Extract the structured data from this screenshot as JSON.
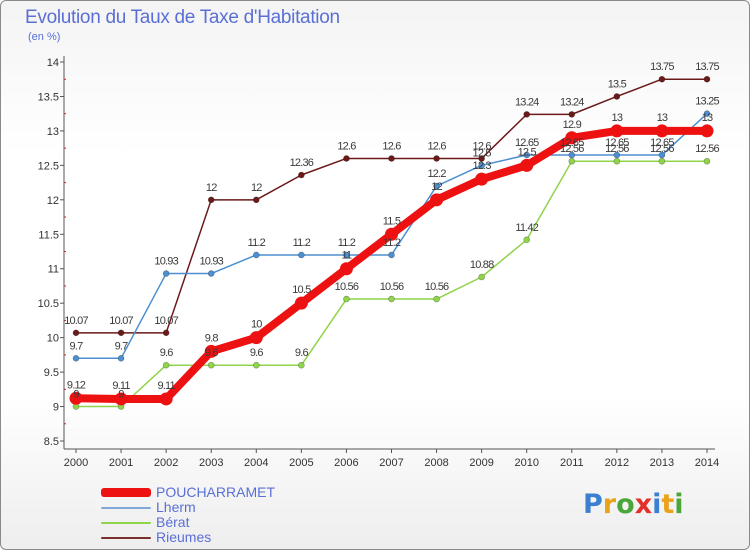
{
  "header": {
    "title": "Evolution du Taux de Taxe d'Habitation",
    "unit": "(en %)"
  },
  "chart_data": {
    "type": "line",
    "title": "Evolution du Taux de Taxe d'Habitation",
    "ylabel": "(en %)",
    "xlabel": "",
    "x": [
      2000,
      2001,
      2002,
      2003,
      2004,
      2005,
      2006,
      2007,
      2008,
      2009,
      2010,
      2011,
      2012,
      2013,
      2014
    ],
    "ylim": [
      8.5,
      14
    ],
    "yticks": [
      "8.5",
      "9",
      "9.5",
      "10",
      "10.5",
      "11",
      "11.5",
      "12",
      "12.5",
      "13",
      "13.5",
      "14"
    ],
    "grid": false,
    "legend_position": "bottom-left",
    "series": [
      {
        "name": "Rieumes",
        "color": "#6b1a1a",
        "values": [
          10.07,
          10.07,
          10.07,
          12,
          12,
          12.36,
          12.6,
          12.6,
          12.6,
          12.6,
          13.24,
          13.24,
          13.5,
          13.75,
          13.75
        ],
        "labels": [
          "10.07",
          "10.07",
          "10.07",
          "12",
          "12",
          "12.36",
          "12.6",
          "12.6",
          "12.6",
          "12.6",
          "13.24",
          "13.24",
          "13.5",
          "13.75",
          "13.75"
        ]
      },
      {
        "name": "Lherm",
        "color": "#4d8fd1",
        "values": [
          9.7,
          9.7,
          10.93,
          10.93,
          11.2,
          11.2,
          11.2,
          11.2,
          12.2,
          12.5,
          12.65,
          12.65,
          12.65,
          12.65,
          13.25
        ],
        "labels": [
          "9.7",
          "9.7",
          "10.93",
          "10.93",
          "11.2",
          "11.2",
          "11.2",
          "11.2",
          "12.2",
          "12.5",
          "12.65",
          "12.65",
          "12.65",
          "12.65",
          "13.25"
        ]
      },
      {
        "name": "Bérat",
        "color": "#8fd44a",
        "values": [
          9,
          9,
          9.6,
          9.6,
          9.6,
          9.6,
          10.56,
          10.56,
          10.56,
          10.88,
          11.42,
          12.56,
          12.56,
          12.56,
          12.56
        ],
        "labels": [
          "9",
          "9",
          "9.6",
          "9.6",
          "9.6",
          "9.6",
          "10.56",
          "10.56",
          "10.56",
          "10.88",
          "11.42",
          "12.56",
          "12.56",
          "12.56",
          "12.56"
        ]
      },
      {
        "name": "POUCHARRAMET",
        "color": "#ee1111",
        "values": [
          9.12,
          9.11,
          9.11,
          9.8,
          10,
          10.5,
          11,
          11.5,
          12,
          12.3,
          12.5,
          12.9,
          13,
          13,
          13
        ],
        "labels": [
          "9.12",
          "9.11",
          "9.11",
          "9.8",
          "10",
          "10.5",
          "11",
          "11.5",
          "12",
          "12.3",
          "12.5",
          "12.9",
          "13",
          "13",
          "13"
        ]
      }
    ]
  },
  "legend": [
    {
      "label": "POUCHARRAMET",
      "color": "#ee1111"
    },
    {
      "label": "Lherm",
      "color": "#7fa9d8"
    },
    {
      "label": "Bérat",
      "color": "#8fd44a"
    },
    {
      "label": "Rieumes",
      "color": "#7a3030"
    }
  ],
  "logo": {
    "text": "Proxiti",
    "letters": [
      {
        "ch": "P",
        "color": "#3a7fd0"
      },
      {
        "ch": "r",
        "color": "#e9a21a"
      },
      {
        "ch": "o",
        "color": "#4aa63a"
      },
      {
        "ch": "x",
        "color": "#e2302a"
      },
      {
        "ch": "i",
        "color": "#3a7fd0"
      },
      {
        "ch": "t",
        "color": "#e9a21a"
      },
      {
        "ch": "i",
        "color": "#4aa63a"
      }
    ]
  }
}
